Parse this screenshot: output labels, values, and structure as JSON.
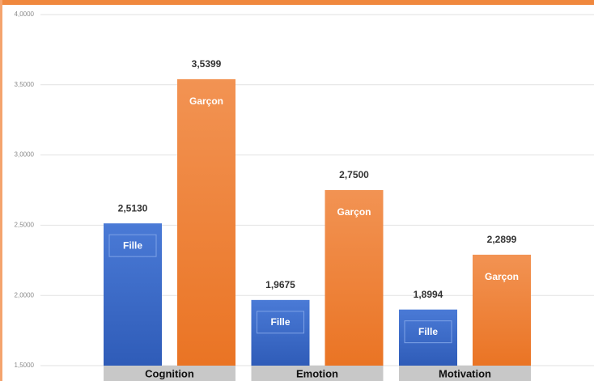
{
  "chart_data": {
    "type": "bar",
    "categories": [
      "Cognition",
      "Emotion",
      "Motivation"
    ],
    "series": [
      {
        "name": "Fille",
        "color": "#3c6ccc",
        "values": [
          2.513,
          1.9675,
          1.8994
        ],
        "value_labels": [
          "2,5130",
          "1,9675",
          "1,8994"
        ]
      },
      {
        "name": "Garçon",
        "color": "#f0883e",
        "values": [
          3.5399,
          2.75,
          2.2899
        ],
        "value_labels": [
          "3,5399",
          "2,7500",
          "2,2899"
        ]
      }
    ],
    "ylim": [
      1.5,
      4
    ],
    "yticks": [
      {
        "value": 1.5,
        "label": "1,5000"
      },
      {
        "value": 2,
        "label": "2,0000"
      },
      {
        "value": 2.5,
        "label": "2,5000"
      },
      {
        "value": 3,
        "label": "3,0000"
      },
      {
        "value": 3.5,
        "label": "3,5000"
      },
      {
        "value": 4,
        "label": "4,0000"
      }
    ],
    "grid": true
  }
}
